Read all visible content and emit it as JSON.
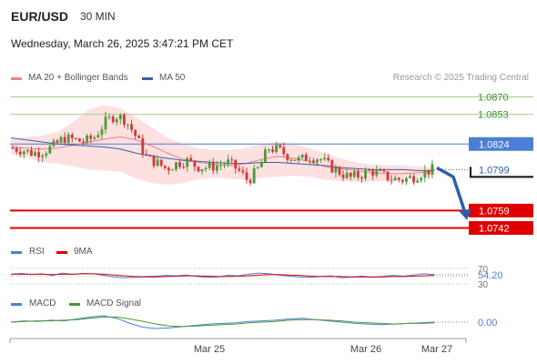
{
  "header": {
    "pair": "EUR/USD",
    "interval": "30 MIN",
    "datetime": "Wednesday, March 26, 2025 3:47:21 PM CET"
  },
  "legend": {
    "ma20_bb": "MA 20 + Bollinger Bands",
    "ma50": "MA 50",
    "rsi": "RSI",
    "rsi_ma": "9MA",
    "macd": "MACD",
    "macd_signal": "MACD Signal"
  },
  "attribution": "Research © 2025 Trading Central",
  "colors": {
    "ma20": "#f08080",
    "ma50": "#3a5fa8",
    "bb_fill": "#fde0e0",
    "up_candle": "#4f9a3a",
    "down_candle": "#d13b3b",
    "resistance_green": "#a8d08d",
    "pivot_blue": "#4a7fd6",
    "support_red": "#e00000",
    "arrow": "#2e5fa3",
    "rsi_line": "#4a7fd6",
    "rsi_ma_line": "#e00000",
    "macd_line": "#4a7fd6",
    "macd_signal_line": "#4a9a2a"
  },
  "icons": [
    "down-arrow-icon"
  ],
  "chart_data": [
    {
      "type": "candlestick",
      "x_ticks": [
        "Mar 25",
        "Mar 26",
        "Mar 27"
      ],
      "ylim": [
        1.0735,
        1.0885
      ],
      "levels": [
        {
          "label": "1.0870",
          "value": 1.087,
          "kind": "resistance"
        },
        {
          "label": "1.0853",
          "value": 1.0853,
          "kind": "resistance"
        },
        {
          "label": "1.0824",
          "value": 1.0824,
          "kind": "pivot"
        },
        {
          "label": "1.0759",
          "value": 1.0759,
          "kind": "support"
        },
        {
          "label": "1.0742",
          "value": 1.0742,
          "kind": "support"
        }
      ],
      "last_price": {
        "label": "1.0799",
        "value": 1.0799
      },
      "close_path": [
        1.082,
        1.0818,
        1.0815,
        1.0817,
        1.0822,
        1.083,
        1.0828,
        1.0826,
        1.0831,
        1.0845,
        1.0852,
        1.0848,
        1.0832,
        1.0812,
        1.0806,
        1.08,
        1.0805,
        1.0808,
        1.0802,
        1.0801,
        1.0803,
        1.0806,
        1.0799,
        1.0788,
        1.08,
        1.082,
        1.0818,
        1.0812,
        1.0808,
        1.0812,
        1.081,
        1.0802,
        1.0796,
        1.0791,
        1.0794,
        1.0798,
        1.0794,
        1.079,
        1.0789,
        1.0791,
        1.0796,
        1.0799
      ],
      "ma20": [
        1.0821,
        1.082,
        1.0819,
        1.082,
        1.0823,
        1.0826,
        1.0829,
        1.0831,
        1.0828,
        1.0822,
        1.0815,
        1.0809,
        1.0806,
        1.0804,
        1.0803,
        1.0805,
        1.0809,
        1.0812,
        1.081,
        1.0807,
        1.0802,
        1.08,
        1.0798,
        1.0796,
        1.0795,
        1.0795,
        1.0796,
        1.0797
      ],
      "ma50": [
        1.083,
        1.0828,
        1.0826,
        1.0824,
        1.0823,
        1.0822,
        1.0821,
        1.0819,
        1.0815,
        1.0812,
        1.081,
        1.0808,
        1.0807,
        1.0806,
        1.0805,
        1.0805,
        1.0806,
        1.0806,
        1.0805,
        1.0804,
        1.0803,
        1.0801,
        1.08,
        1.0799,
        1.0799,
        1.0799,
        1.0798,
        1.0798
      ],
      "bb_upper": [
        1.0829,
        1.0831,
        1.0832,
        1.0836,
        1.0846,
        1.0858,
        1.0862,
        1.0859,
        1.085,
        1.084,
        1.083,
        1.0824,
        1.082,
        1.0818,
        1.0818,
        1.082,
        1.0824,
        1.0826,
        1.0824,
        1.082,
        1.0815,
        1.081,
        1.0806,
        1.0804,
        1.0803,
        1.0803,
        1.0802,
        1.0801
      ],
      "bb_lower": [
        1.0814,
        1.0811,
        1.0806,
        1.0805,
        1.0802,
        1.0799,
        1.0798,
        1.0797,
        1.079,
        1.0786,
        1.0784,
        1.0786,
        1.079,
        1.0791,
        1.079,
        1.0789,
        1.0791,
        1.0792,
        1.0793,
        1.0792,
        1.0789,
        1.0788,
        1.0787,
        1.0787,
        1.0788,
        1.079,
        1.0792,
        1.0794
      ],
      "projection": {
        "from": 1.0799,
        "to": 1.0748
      }
    },
    {
      "type": "line",
      "name": "RSI",
      "ylim": [
        25,
        75
      ],
      "ticks": [
        "70",
        "30"
      ],
      "current_label": "54.20",
      "rsi": [
        55,
        57,
        54,
        56,
        52,
        58,
        55,
        57,
        56,
        52,
        48,
        46,
        47,
        49,
        50,
        52,
        51,
        53,
        49,
        47,
        48,
        52,
        51,
        55,
        58,
        56,
        53,
        50,
        48,
        47,
        49,
        51,
        46,
        48,
        50,
        47,
        49,
        52,
        50,
        53,
        56,
        54
      ],
      "ma9": [
        55,
        55,
        55,
        55,
        54,
        55,
        55,
        56,
        56,
        55,
        53,
        51,
        49,
        48,
        48,
        49,
        50,
        51,
        51,
        50,
        49,
        49,
        50,
        51,
        53,
        54,
        54,
        53,
        52,
        50,
        49,
        49,
        49,
        48,
        48,
        48,
        48,
        49,
        49,
        50,
        51,
        52
      ]
    },
    {
      "type": "line",
      "name": "MACD",
      "current_label": "0.00",
      "macd": [
        0.0,
        0.2,
        0.1,
        0.3,
        0.2,
        0.5,
        0.8,
        1.0,
        0.6,
        -0.2,
        -0.8,
        -1.0,
        -0.9,
        -0.7,
        -0.5,
        -0.3,
        -0.2,
        -0.1,
        0.1,
        0.2,
        0.3,
        0.5,
        0.6,
        0.4,
        0.2,
        0.0,
        -0.2,
        -0.3,
        -0.4,
        -0.3,
        -0.2,
        -0.1,
        0.0
      ],
      "signal": [
        0.0,
        0.1,
        0.2,
        0.2,
        0.3,
        0.4,
        0.6,
        0.8,
        0.8,
        0.5,
        0.1,
        -0.3,
        -0.6,
        -0.7,
        -0.6,
        -0.5,
        -0.4,
        -0.3,
        -0.1,
        0.0,
        0.1,
        0.3,
        0.4,
        0.4,
        0.3,
        0.2,
        0.0,
        -0.1,
        -0.2,
        -0.3,
        -0.2,
        -0.2,
        -0.1
      ]
    }
  ]
}
